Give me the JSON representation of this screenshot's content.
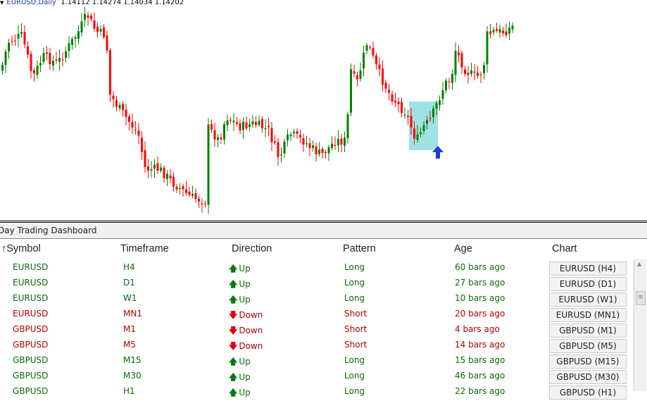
{
  "chart": {
    "symbol": "EURUSD,Daily",
    "ohlc": "1.14112 1.14274 1.14034 1.14202",
    "colors": {
      "bull": "#008000",
      "bear": "#ff0000",
      "highlight": "#7fd8d8",
      "signal_arrow": "#1e3adc"
    }
  },
  "dashboard": {
    "title": "Day Trading Dashboard",
    "columns": {
      "symbol": "Symbol",
      "sort_icon": "↑",
      "timeframe": "Timeframe",
      "direction": "Direction",
      "pattern": "Pattern",
      "age": "Age",
      "chart": "Chart"
    },
    "rows": [
      {
        "symbol": "EURUSD",
        "timeframe": "H4",
        "direction": "Up",
        "pattern": "Long",
        "age": "60 bars ago",
        "chart": "EURUSD (H4)",
        "trend": "up"
      },
      {
        "symbol": "EURUSD",
        "timeframe": "D1",
        "direction": "Up",
        "pattern": "Long",
        "age": "27 bars ago",
        "chart": "EURUSD (D1)",
        "trend": "up"
      },
      {
        "symbol": "EURUSD",
        "timeframe": "W1",
        "direction": "Up",
        "pattern": "Long",
        "age": "10 bars ago",
        "chart": "EURUSD (W1)",
        "trend": "up"
      },
      {
        "symbol": "EURUSD",
        "timeframe": "MN1",
        "direction": "Down",
        "pattern": "Short",
        "age": "20 bars ago",
        "chart": "EURUSD (MN1)",
        "trend": "down"
      },
      {
        "symbol": "GBPUSD",
        "timeframe": "M1",
        "direction": "Down",
        "pattern": "Short",
        "age": "4 bars ago",
        "chart": "GBPUSD (M1)",
        "trend": "down"
      },
      {
        "symbol": "GBPUSD",
        "timeframe": "M5",
        "direction": "Down",
        "pattern": "Short",
        "age": "14 bars ago",
        "chart": "GBPUSD (M5)",
        "trend": "down"
      },
      {
        "symbol": "GBPUSD",
        "timeframe": "M15",
        "direction": "Up",
        "pattern": "Long",
        "age": "15 bars ago",
        "chart": "GBPUSD (M15)",
        "trend": "up"
      },
      {
        "symbol": "GBPUSD",
        "timeframe": "M30",
        "direction": "Up",
        "pattern": "Long",
        "age": "46 bars ago",
        "chart": "GBPUSD (M30)",
        "trend": "up"
      },
      {
        "symbol": "GBPUSD",
        "timeframe": "H1",
        "direction": "Up",
        "pattern": "Long",
        "age": "22 bars ago",
        "chart": "GBPUSD (H1)",
        "trend": "up"
      }
    ]
  }
}
